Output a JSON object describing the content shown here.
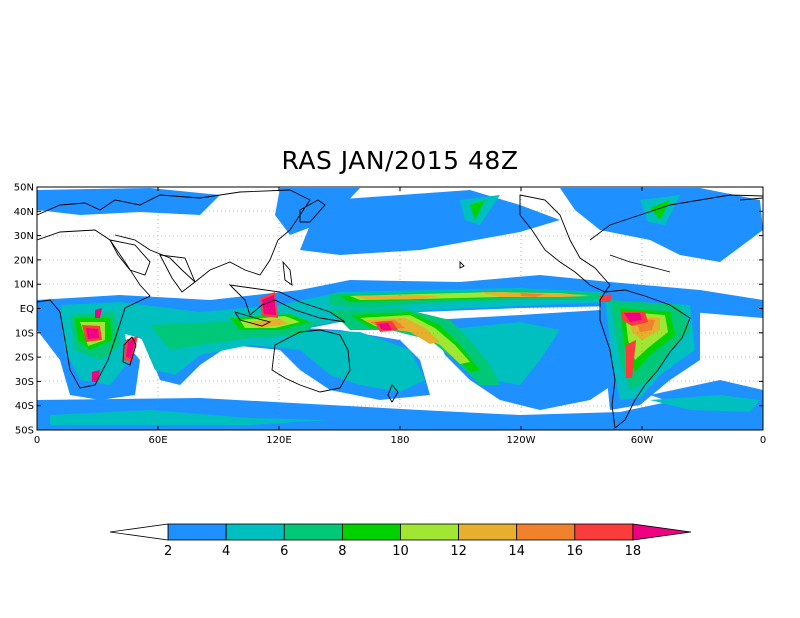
{
  "title": "RAS JAN/2015 48Z",
  "map": {
    "lat_labels": [
      "50N",
      "40N",
      "30N",
      "20N",
      "10N",
      "EQ",
      "10S",
      "20S",
      "30S",
      "40S",
      "50S"
    ],
    "lon_labels": [
      "0",
      "60E",
      "120E",
      "180",
      "120W",
      "60W",
      "0"
    ],
    "grid": "dotted",
    "lat_range": [
      -50,
      50
    ],
    "lon_range": [
      0,
      360
    ]
  },
  "colorbar": {
    "labels": [
      "2",
      "4",
      "6",
      "8",
      "10",
      "12",
      "14",
      "16",
      "18"
    ],
    "colors": [
      "#ffffff",
      "#1e90ff",
      "#00bfbf",
      "#00c878",
      "#00d200",
      "#a0e632",
      "#e6af2d",
      "#f0822d",
      "#fa3c3c",
      "#f00082"
    ]
  },
  "land_color": "#000000",
  "background": "#ffffff"
}
